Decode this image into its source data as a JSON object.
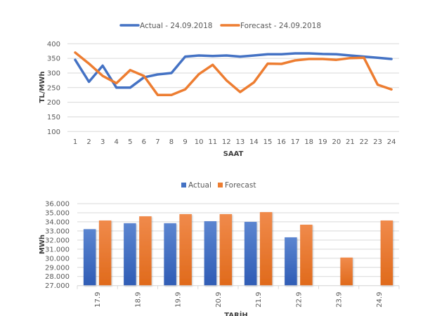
{
  "chart_data": [
    {
      "type": "line",
      "title": "",
      "xlabel": "SAAT",
      "ylabel": "TL/MWh",
      "ylim": [
        100,
        400
      ],
      "yticks": [
        100,
        150,
        200,
        250,
        300,
        350,
        400
      ],
      "grid": true,
      "legend_position": "top-center",
      "x": [
        1,
        2,
        3,
        4,
        5,
        6,
        7,
        8,
        9,
        10,
        11,
        12,
        13,
        14,
        15,
        16,
        17,
        18,
        19,
        20,
        21,
        22,
        23,
        24
      ],
      "series": [
        {
          "name": "Actual - 24.09.2018",
          "color": "#4472C4",
          "values": [
            345,
            270,
            325,
            250,
            250,
            285,
            295,
            300,
            356,
            360,
            358,
            360,
            356,
            360,
            364,
            364,
            367,
            367,
            365,
            364,
            360,
            356,
            352,
            348
          ]
        },
        {
          "name": "Forecast - 24.09.2018",
          "color": "#ED7D31",
          "values": [
            370,
            332,
            290,
            265,
            310,
            290,
            225,
            225,
            244,
            296,
            328,
            275,
            235,
            268,
            332,
            331,
            343,
            348,
            348,
            345,
            351,
            352,
            260,
            244
          ]
        }
      ]
    },
    {
      "type": "bar",
      "title": "",
      "xlabel": "TARİH",
      "ylabel": "MWh",
      "ylim": [
        27000,
        36000
      ],
      "yticks": [
        "27.000",
        "28.000",
        "29.000",
        "30.000",
        "31.000",
        "32.000",
        "33.000",
        "34.000",
        "35.000",
        "36.000"
      ],
      "ytick_values": [
        27000,
        28000,
        29000,
        30000,
        31000,
        32000,
        33000,
        34000,
        35000,
        36000
      ],
      "grid": true,
      "legend_position": "top-center",
      "categories": [
        "17.9",
        "18.9",
        "19.9",
        "20.9",
        "21.9",
        "22.9",
        "23.9",
        "24.9"
      ],
      "series": [
        {
          "name": "Actual",
          "color": "#4472C4",
          "values": [
            33200,
            33850,
            33850,
            34070,
            34000,
            32300,
            null,
            null
          ]
        },
        {
          "name": "Forecast",
          "color": "#ED7D31",
          "values": [
            34150,
            34610,
            34850,
            34850,
            35070,
            33690,
            30080,
            34150
          ]
        }
      ]
    }
  ]
}
